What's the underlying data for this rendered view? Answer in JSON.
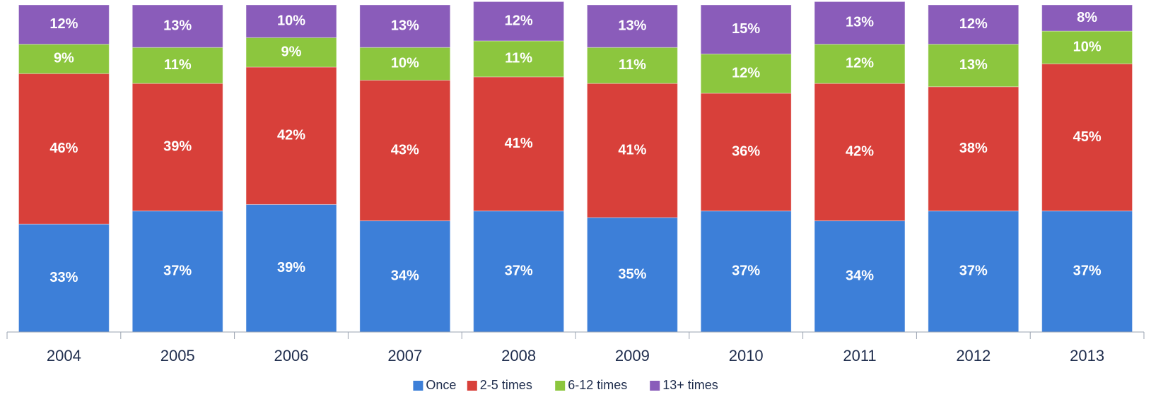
{
  "chart_data": {
    "type": "stacked_bar",
    "categories": [
      "2004",
      "2005",
      "2006",
      "2007",
      "2008",
      "2009",
      "2010",
      "2011",
      "2012",
      "2013"
    ],
    "ylim": [
      0,
      100
    ],
    "legend": "bottom",
    "series": [
      {
        "name": "Once",
        "color": "#3d7fd8",
        "values": [
          33,
          37,
          39,
          34,
          37,
          35,
          37,
          34,
          37,
          37
        ],
        "value_labels": [
          "33%",
          "37%",
          "39%",
          "34%",
          "37%",
          "35%",
          "37%",
          "34%",
          "37%",
          "37%"
        ]
      },
      {
        "name": "2-5 times",
        "color": "#d8403a",
        "values": [
          46,
          39,
          42,
          43,
          41,
          41,
          36,
          42,
          38,
          45
        ],
        "value_labels": [
          "46%",
          "39%",
          "42%",
          "43%",
          "41%",
          "41%",
          "36%",
          "42%",
          "38%",
          "45%"
        ]
      },
      {
        "name": "6-12 times",
        "color": "#8cc63e",
        "values": [
          9,
          11,
          9,
          10,
          11,
          11,
          12,
          12,
          13,
          10
        ],
        "value_labels": [
          "9%",
          "11%",
          "9%",
          "10%",
          "11%",
          "11%",
          "12%",
          "12%",
          "13%",
          "10%"
        ]
      },
      {
        "name": "13+ times",
        "color": "#8a5cba",
        "values": [
          12,
          13,
          10,
          13,
          12,
          13,
          15,
          13,
          12,
          8
        ],
        "value_labels": [
          "12%",
          "13%",
          "10%",
          "13%",
          "12%",
          "13%",
          "15%",
          "13%",
          "12%",
          "8%"
        ]
      }
    ]
  }
}
